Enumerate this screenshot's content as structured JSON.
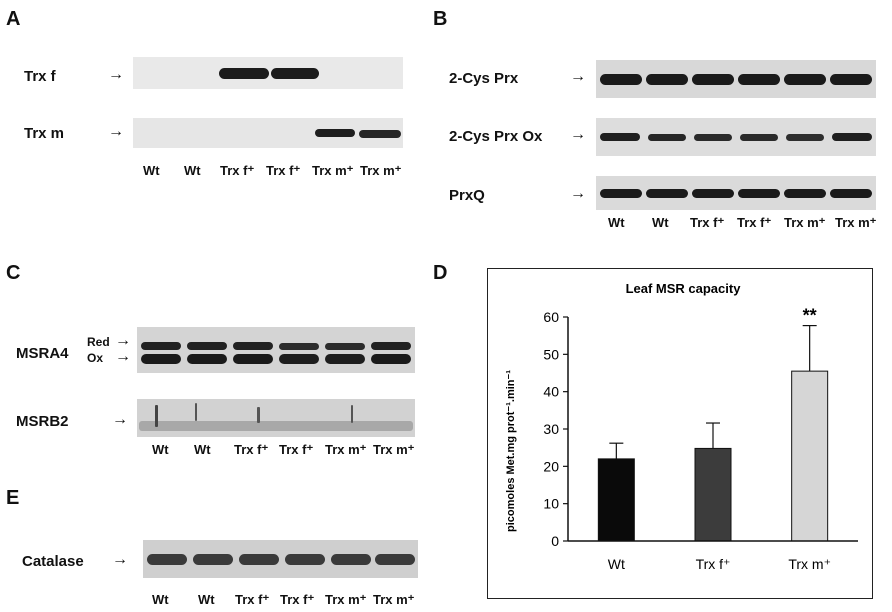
{
  "panels": {
    "A": {
      "letter": "A",
      "rows": [
        {
          "label": "Trx f"
        },
        {
          "label": "Trx m"
        }
      ],
      "lanes": [
        "Wt",
        "Wt",
        "Trx f⁺",
        "Trx f⁺",
        "Trx m⁺",
        "Trx m⁺"
      ]
    },
    "B": {
      "letter": "B",
      "rows": [
        {
          "label": "2-Cys Prx"
        },
        {
          "label": "2-Cys Prx Ox"
        },
        {
          "label": "PrxQ"
        }
      ],
      "lanes": [
        "Wt",
        "Wt",
        "Trx f⁺",
        "Trx f⁺",
        "Trx m⁺",
        "Trx m⁺"
      ]
    },
    "C": {
      "letter": "C",
      "rows": [
        {
          "label": "MSRA4"
        },
        {
          "label": "MSRB2"
        }
      ],
      "band_labels": [
        "Red",
        "Ox"
      ],
      "lanes": [
        "Wt",
        "Wt",
        "Trx f⁺",
        "Trx f⁺",
        "Trx m⁺",
        "Trx m⁺"
      ]
    },
    "D": {
      "letter": "D"
    },
    "E": {
      "letter": "E",
      "rows": [
        {
          "label": "Catalase"
        }
      ],
      "lanes": [
        "Wt",
        "Wt",
        "Trx f⁺",
        "Trx f⁺",
        "Trx m⁺",
        "Trx m⁺"
      ]
    }
  },
  "chart_data": {
    "type": "bar",
    "title": "Leaf MSR capacity",
    "ylabel": "picomoles Met.mg prot⁻¹.min⁻¹",
    "categories": [
      "Wt",
      "Trx f⁺",
      "Trx m⁺"
    ],
    "values": [
      22,
      24.8,
      45.5
    ],
    "errors": [
      4.2,
      6.8,
      12.2
    ],
    "colors": [
      "#0a0a0a",
      "#3c3c3c",
      "#d6d6d6"
    ],
    "significance": [
      "",
      "",
      "**"
    ],
    "ylim": [
      0,
      60
    ],
    "yticks": [
      "0",
      "10",
      "20",
      "30",
      "40",
      "50",
      "60"
    ],
    "grid": false
  }
}
